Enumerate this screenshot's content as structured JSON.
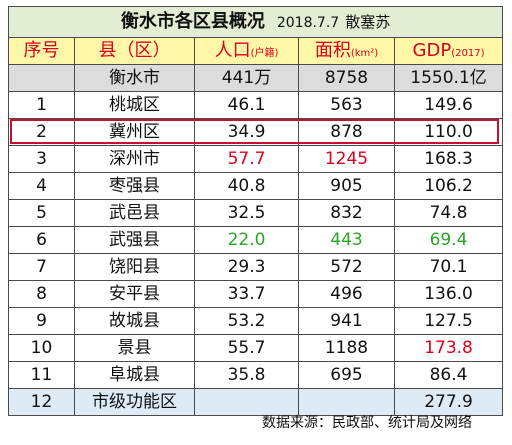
{
  "title": {
    "main": "衡水市各区县概况",
    "date": "2018.7.7",
    "author": "散塞苏"
  },
  "header": {
    "no": "序号",
    "county": "县（区）",
    "population": "人口",
    "population_unit": "(户籍)",
    "area": "面积",
    "area_unit": "(km²)",
    "gdp": "GDP",
    "gdp_unit": "(2017)"
  },
  "total": {
    "name": "衡水市",
    "population": "441万",
    "area": "8758",
    "gdp": "1550.1亿"
  },
  "rows": [
    {
      "no": "1",
      "name": "桃城区",
      "population": "46.1",
      "area": "563",
      "gdp": "149.6"
    },
    {
      "no": "2",
      "name": "冀州区",
      "population": "34.9",
      "area": "878",
      "gdp": "110.0"
    },
    {
      "no": "3",
      "name": "深州市",
      "population": "57.7",
      "area": "1245",
      "gdp": "168.3"
    },
    {
      "no": "4",
      "name": "枣强县",
      "population": "40.8",
      "area": "905",
      "gdp": "106.2"
    },
    {
      "no": "5",
      "name": "武邑县",
      "population": "32.5",
      "area": "832",
      "gdp": "74.8"
    },
    {
      "no": "6",
      "name": "武强县",
      "population": "22.0",
      "area": "443",
      "gdp": "69.4"
    },
    {
      "no": "7",
      "name": "饶阳县",
      "population": "29.3",
      "area": "572",
      "gdp": "70.1"
    },
    {
      "no": "8",
      "name": "安平县",
      "population": "33.7",
      "area": "496",
      "gdp": "136.0"
    },
    {
      "no": "9",
      "name": "故城县",
      "population": "53.2",
      "area": "941",
      "gdp": "127.5"
    },
    {
      "no": "10",
      "name": "景县",
      "population": "55.7",
      "area": "1188",
      "gdp": "173.8"
    },
    {
      "no": "11",
      "name": "阜城县",
      "population": "35.8",
      "area": "695",
      "gdp": "86.4"
    },
    {
      "no": "12",
      "name": "市级功能区",
      "population": "",
      "area": "",
      "gdp": "277.9"
    }
  ],
  "source": "数据来源：民政部、统计局及网络",
  "colors": {
    "max": "#d9001b",
    "min": "#2aa527",
    "highlight_border": "#c8102e"
  }
}
